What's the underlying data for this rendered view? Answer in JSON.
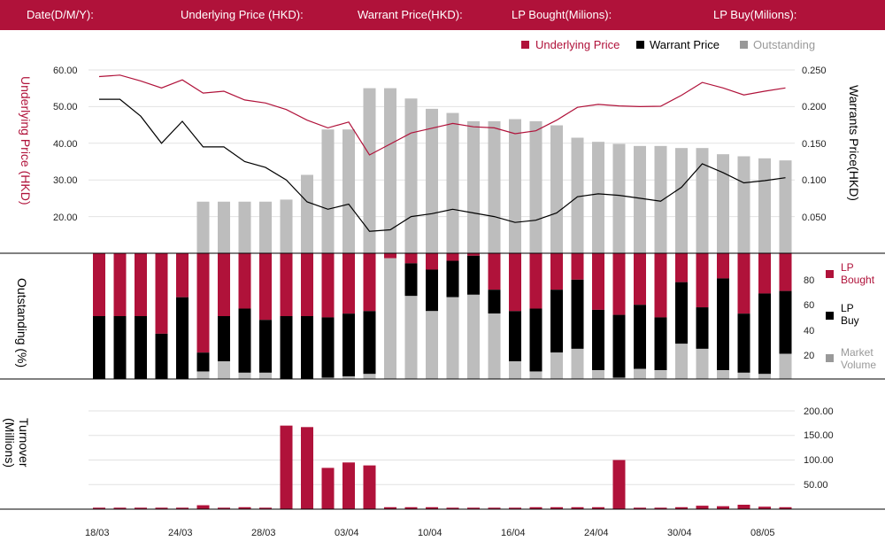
{
  "header": {
    "date": "Date(D/M/Y):",
    "underlying": "Underlying Price (HKD):",
    "warrant": "Warrant  Price(HKD):",
    "lp_bought": "LP Bought(Milions):",
    "lp_buy": "LP Buy(Milions):"
  },
  "colors": {
    "brand": "#b0123a",
    "black": "#000000",
    "grey": "#bdbdbd",
    "legend_grey": "#999999"
  },
  "chart_data": [
    {
      "type": "line",
      "legend": [
        "Underlying Price",
        "Warrant  Price",
        "Outstanding"
      ],
      "ylabel_left": "Underlying Price (HKD)",
      "ylabel_right": "Warrants  Price(HKD)",
      "left_ticks": [
        "60.00",
        "50.00",
        "40.00",
        "30.00",
        "20.00"
      ],
      "right_ticks": [
        "0.250",
        "0.200",
        "0.150",
        "0.100",
        "0.050"
      ],
      "ylim_left": [
        10,
        60
      ],
      "ylim_right": [
        0,
        0.25
      ],
      "underlying": [
        58.2,
        58.6,
        57.0,
        55.1,
        57.3,
        53.7,
        54.2,
        51.8,
        51.0,
        49.2,
        46.3,
        44.2,
        45.8,
        36.8,
        39.8,
        42.8,
        44.1,
        45.4,
        44.5,
        44.2,
        42.6,
        43.4,
        46.3,
        49.8,
        50.6,
        50.2,
        50.0,
        50.1,
        53.1,
        56.6,
        55.1,
        53.2,
        54.2,
        55.1
      ],
      "warrant": [
        0.21,
        0.21,
        0.187,
        0.15,
        0.18,
        0.145,
        0.145,
        0.125,
        0.117,
        0.1,
        0.07,
        0.06,
        0.067,
        0.03,
        0.032,
        0.05,
        0.054,
        0.06,
        0.055,
        0.05,
        0.042,
        0.045,
        0.055,
        0.077,
        0.081,
        0.079,
        0.075,
        0.071,
        0.09,
        0.122,
        0.11,
        0.096,
        0.099,
        0.103
      ]
    },
    {
      "type": "bar",
      "name": "Outstanding",
      "values_pct": [
        0,
        0,
        0,
        0,
        0,
        25,
        25,
        25,
        25,
        26,
        38,
        60,
        60,
        80,
        80,
        75,
        70,
        68,
        64,
        64,
        65,
        64,
        62,
        56,
        54,
        53,
        52,
        52,
        51,
        51,
        48,
        47,
        46,
        45
      ]
    },
    {
      "type": "bar",
      "stacked": true,
      "ylabel": "Outstanding (%)",
      "ticks": [
        "80",
        "60",
        "40",
        "20"
      ],
      "ylim": [
        0,
        100
      ],
      "legend": [
        "LP Bought",
        "LP Buy",
        "Market Volume"
      ],
      "market_volume": [
        0,
        0,
        0,
        0,
        0,
        6,
        14,
        5,
        5,
        0,
        0,
        1,
        2,
        4,
        96,
        66,
        54,
        65,
        67,
        52,
        14,
        6,
        21,
        24,
        7,
        1,
        8,
        7,
        28,
        24,
        7,
        5,
        4,
        20
      ],
      "lp_buy": [
        50,
        50,
        50,
        36,
        65,
        15,
        36,
        51,
        42,
        50,
        50,
        48,
        50,
        50,
        0,
        26,
        33,
        29,
        31,
        19,
        40,
        50,
        50,
        55,
        48,
        50,
        51,
        42,
        49,
        33,
        73,
        47,
        64,
        50
      ]
    },
    {
      "type": "bar",
      "ylabel": "Turnover (Millions)",
      "ticks": [
        "200.00",
        "150.00",
        "100.00",
        "50.00"
      ],
      "ylim": [
        0,
        200
      ],
      "x_ticks": [
        "18/03",
        "24/03",
        "28/03",
        "03/04",
        "10/04",
        "16/04",
        "24/04",
        "30/04",
        "08/05"
      ],
      "values": [
        3,
        3,
        3,
        3,
        3,
        8,
        3,
        4,
        3,
        170,
        167,
        84,
        95,
        89,
        4,
        4,
        4,
        3,
        3,
        3,
        3,
        4,
        4,
        4,
        4,
        100,
        3,
        3,
        4,
        7,
        6,
        9,
        5,
        4
      ]
    }
  ]
}
